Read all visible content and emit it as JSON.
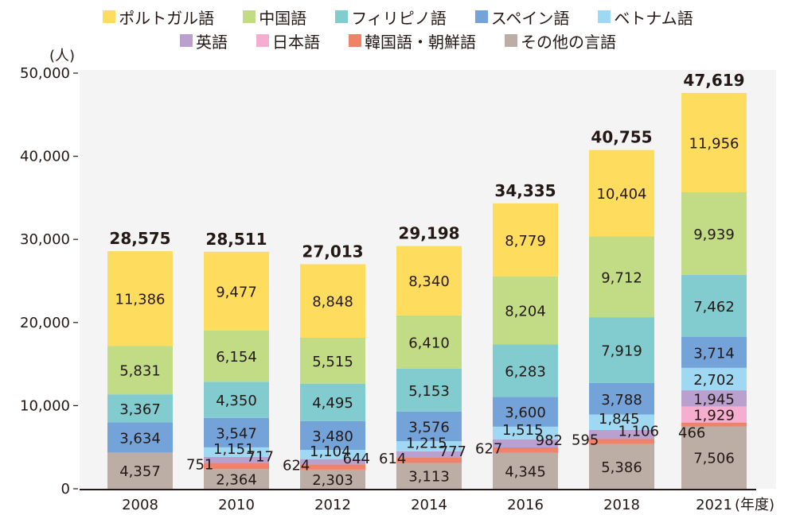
{
  "chart_data": {
    "type": "bar",
    "stacked": true,
    "title": "",
    "xlabel": "",
    "x_unit": "(年度)",
    "ylabel": "(人)",
    "ylim": [
      0,
      50000
    ],
    "yticks": [
      0,
      10000,
      20000,
      30000,
      40000,
      50000
    ],
    "ytick_labels": [
      "0",
      "10,000",
      "20,000",
      "30,000",
      "40,000",
      "50,000"
    ],
    "grid": false,
    "legend_position": "top",
    "categories": [
      "2008",
      "2010",
      "2012",
      "2014",
      "2016",
      "2018",
      "2021"
    ],
    "totals": [
      28575,
      28511,
      27013,
      29198,
      34335,
      40755,
      47619
    ],
    "total_labels": [
      "28,575",
      "28,511",
      "27,013",
      "29,198",
      "34,335",
      "40,755",
      "47,619"
    ],
    "series": [
      {
        "name": "その他の言語",
        "color": "#bcaea5",
        "values": [
          4357,
          2364,
          2303,
          3113,
          4345,
          5386,
          7506
        ],
        "labels": [
          "4,357",
          "2,364",
          "2,303",
          "3,113",
          "4,345",
          "5,386",
          "7,506"
        ]
      },
      {
        "name": "韓国語・朝鮮語",
        "color": "#f0826a",
        "values": [
          null,
          751,
          624,
          614,
          627,
          595,
          466
        ],
        "labels": [
          "",
          "751",
          "624",
          "614",
          "627",
          "595",
          "466"
        ]
      },
      {
        "name": "日本語",
        "color": "#f5aed0",
        "values": [
          null,
          null,
          null,
          null,
          null,
          null,
          1929
        ],
        "labels": [
          "",
          "",
          "",
          "",
          "",
          "",
          "1,929"
        ]
      },
      {
        "name": "英語",
        "color": "#b9a0cf",
        "values": [
          null,
          717,
          644,
          777,
          982,
          1106,
          1945
        ],
        "labels": [
          "",
          "717",
          "644",
          "777",
          "982",
          "1,106",
          "1,945"
        ]
      },
      {
        "name": "ベトナム語",
        "color": "#9fd8f3",
        "values": [
          null,
          1151,
          1104,
          1215,
          1515,
          1845,
          2702
        ],
        "labels": [
          "",
          "1,151",
          "1,104",
          "1,215",
          "1,515",
          "1,845",
          "2,702"
        ]
      },
      {
        "name": "スペイン語",
        "color": "#74a3d9",
        "values": [
          3634,
          3547,
          3480,
          3576,
          3600,
          3788,
          3714
        ],
        "labels": [
          "3,634",
          "3,547",
          "3,480",
          "3,576",
          "3,600",
          "3,788",
          "3,714"
        ]
      },
      {
        "name": "フィリピノ語",
        "color": "#82ccd0",
        "values": [
          3367,
          4350,
          4495,
          5153,
          6283,
          7919,
          7462
        ],
        "labels": [
          "3,367",
          "4,350",
          "4,495",
          "5,153",
          "6,283",
          "7,919",
          "7,462"
        ]
      },
      {
        "name": "中国語",
        "color": "#c2dc86",
        "values": [
          5831,
          6154,
          5515,
          6410,
          8204,
          9712,
          9939
        ],
        "labels": [
          "5,831",
          "6,154",
          "5,515",
          "6,410",
          "8,204",
          "9,712",
          "9,939"
        ]
      },
      {
        "name": "ポルトガル語",
        "color": "#fedc5e",
        "values": [
          11386,
          9477,
          8848,
          8340,
          8779,
          10404,
          11956
        ],
        "labels": [
          "11,386",
          "9,477",
          "8,848",
          "8,340",
          "8,779",
          "10,404",
          "11,956"
        ]
      }
    ],
    "legend": {
      "rows": [
        [
          "ポルトガル語",
          "中国語",
          "フィリピノ語",
          "スペイン語",
          "ベトナム語"
        ],
        [
          "英語",
          "日本語",
          "韓国語・朝鮮語",
          "その他の言語"
        ]
      ]
    }
  }
}
